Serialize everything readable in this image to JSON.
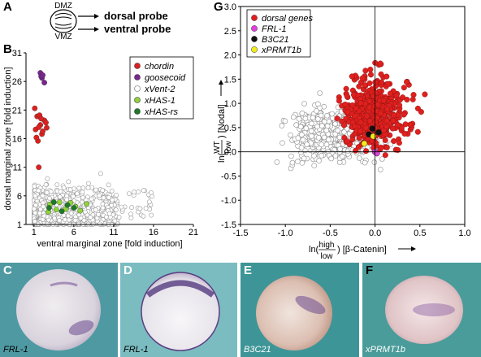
{
  "panels": {
    "A": {
      "label": "A",
      "dmz": "DMZ",
      "vmz": "VMZ",
      "dorsal_probe": "dorsal probe",
      "ventral_probe": "ventral probe"
    },
    "B": {
      "label": "B"
    },
    "G": {
      "label": "G"
    },
    "C": {
      "label": "C",
      "caption": "FRL-1",
      "background": "#4f9aa2"
    },
    "D": {
      "label": "D",
      "caption": "FRL-1",
      "background": "#7bbcc0"
    },
    "E": {
      "label": "E",
      "caption": "B3C21",
      "background": "#3e9597"
    },
    "F": {
      "label": "F",
      "caption": "xPRMT1b",
      "background": "#4a9c9a"
    }
  },
  "chart_data": [
    {
      "panel": "B",
      "type": "scatter",
      "xlabel": "ventral marginal zone [fold induction]",
      "ylabel": "dorsal marginal zone [fold induction]",
      "xlim": [
        0,
        21
      ],
      "ylim": [
        1,
        31
      ],
      "xticks": [
        1,
        6,
        11,
        16,
        21
      ],
      "yticks": [
        1,
        6,
        11,
        16,
        21,
        26,
        31
      ],
      "legend": {
        "placement": "top-right",
        "entries": [
          {
            "name": "chordin",
            "color": "#e0201e",
            "hollow": false
          },
          {
            "name": "goosecoid",
            "color": "#7a2590",
            "hollow": false
          },
          {
            "name": "xVent-2",
            "color": "#ffffff",
            "hollow": true
          },
          {
            "name": "xHAS-1",
            "color": "#8fd43a",
            "hollow": false
          },
          {
            "name": "xHAS-rs",
            "color": "#1c7a2a",
            "hollow": false
          }
        ]
      },
      "series": [
        {
          "name": "goosecoid",
          "color": "#7a2590",
          "points": [
            [
              1.8,
              27.5
            ],
            [
              2.0,
              26.6
            ],
            [
              1.9,
              26.9
            ],
            [
              2.3,
              25.8
            ],
            [
              2.1,
              27.1
            ]
          ]
        },
        {
          "name": "chordin",
          "color": "#e0201e",
          "points": [
            [
              1.1,
              21.3
            ],
            [
              1.4,
              19.9
            ],
            [
              1.8,
              18.4
            ],
            [
              2.3,
              19.2
            ],
            [
              1.2,
              17.6
            ],
            [
              2.0,
              16.8
            ],
            [
              1.5,
              15.6
            ],
            [
              1.7,
              20.1
            ],
            [
              2.5,
              18.8
            ],
            [
              1.3,
              16.2
            ],
            [
              2.6,
              17.9
            ],
            [
              1.9,
              19.5
            ],
            [
              1.6,
              18.0
            ],
            [
              2.1,
              17.3
            ],
            [
              1.6,
              11.0
            ]
          ]
        },
        {
          "name": "xHAS-1",
          "color": "#8fd43a",
          "points": [
            [
              3.0,
              4.5
            ],
            [
              3.8,
              3.6
            ],
            [
              4.2,
              4.9
            ],
            [
              5.0,
              3.7
            ],
            [
              6.2,
              4.1
            ],
            [
              7.6,
              4.6
            ],
            [
              2.8,
              3.2
            ],
            [
              5.6,
              4.8
            ],
            [
              6.8,
              3.4
            ]
          ]
        },
        {
          "name": "xHAS-rs",
          "color": "#1c7a2a",
          "points": [
            [
              2.9,
              3.9
            ],
            [
              4.5,
              3.3
            ],
            [
              5.2,
              4.4
            ],
            [
              3.5,
              4.9
            ],
            [
              6.0,
              3.9
            ]
          ]
        }
      ]
    },
    {
      "panel": "G",
      "type": "scatter",
      "xlabel_parts": [
        "ln(",
        "high",
        "low",
        ") [β-Catenin]"
      ],
      "ylabel_parts": [
        "ln(",
        "WT",
        "low",
        ") [Nodal]"
      ],
      "xlim": [
        -1.5,
        1.0
      ],
      "ylim": [
        -1.5,
        3.0
      ],
      "xticks": [
        -1.5,
        -1.0,
        -0.5,
        0.0,
        0.5,
        1.0
      ],
      "yticks": [
        -1.5,
        -1.0,
        -0.5,
        0.0,
        0.5,
        1.0,
        1.5,
        2.0,
        2.5,
        3.0
      ],
      "legend": {
        "placement": "top-left",
        "entries": [
          {
            "name": "dorsal genes",
            "color": "#e0201e"
          },
          {
            "name": "FRL-1",
            "color": "#e040e0"
          },
          {
            "name": "B3C21",
            "color": "#111111"
          },
          {
            "name": "xPRMT1b",
            "color": "#f2ec1a"
          }
        ]
      },
      "series": [
        {
          "name": "FRL-1",
          "color": "#e040e0",
          "points": [
            [
              0.0,
              0.0
            ],
            [
              0.02,
              -0.03
            ]
          ]
        },
        {
          "name": "B3C21",
          "color": "#111111",
          "points": [
            [
              -0.03,
              0.48
            ],
            [
              0.04,
              0.4
            ],
            [
              -0.07,
              0.36
            ]
          ]
        },
        {
          "name": "xPRMT1b",
          "color": "#f2ec1a",
          "points": [
            [
              -0.02,
              0.32
            ],
            [
              -0.12,
              0.17
            ]
          ]
        }
      ]
    }
  ],
  "icons": {
    "embryo_diagram": "embryo-cross-section-icon",
    "arrow": "right-arrow-icon"
  }
}
